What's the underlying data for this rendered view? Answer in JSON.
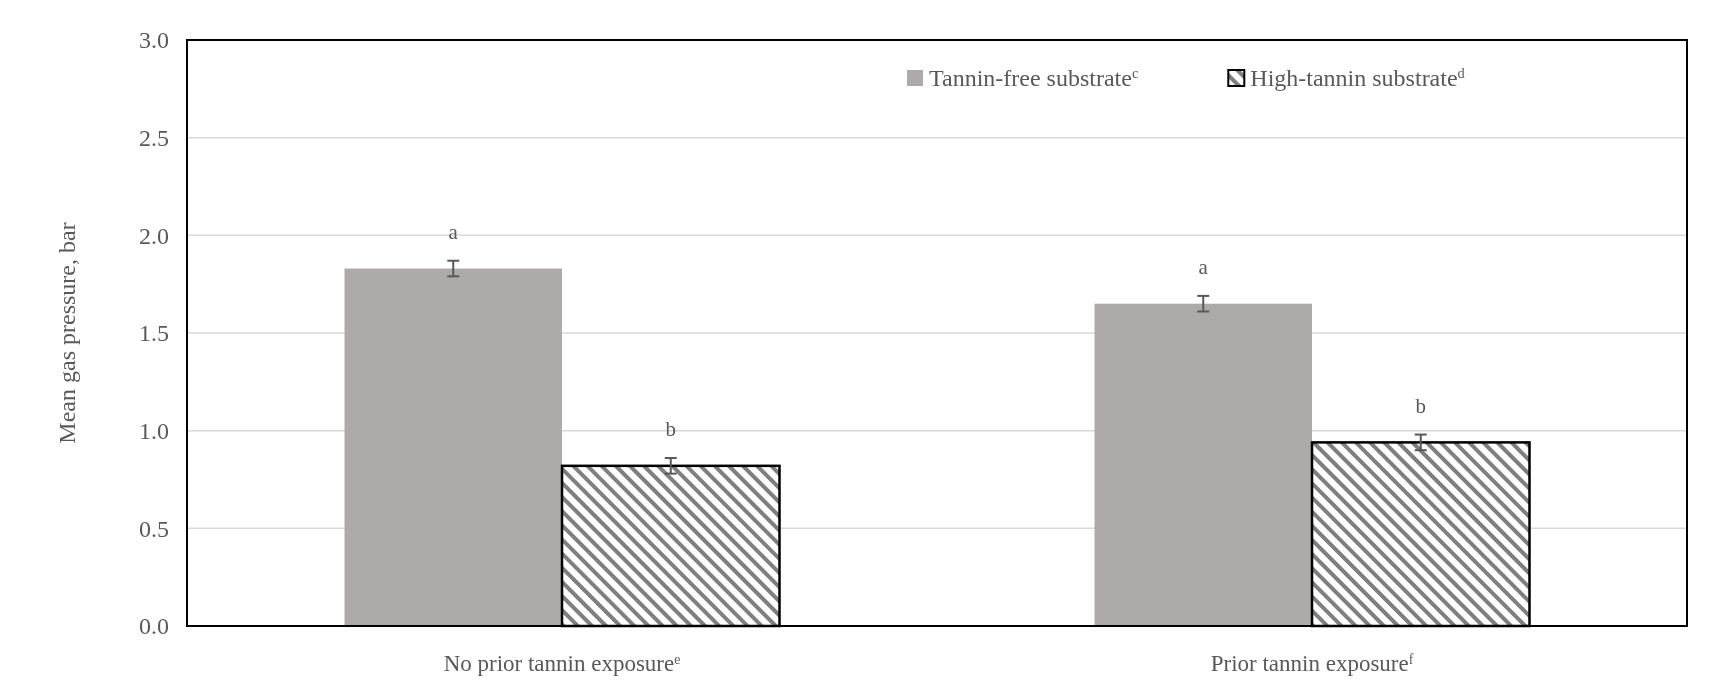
{
  "chart_data": {
    "type": "bar",
    "ylabel": "Mean gas pressure, bar",
    "categories": [
      "No prior tannin exposure$^{e}$",
      "Prior tannin exposure$^{f}$"
    ],
    "series": [
      {
        "name": "Tannin-free substrate$^{c}$",
        "color": "#aeaaaa",
        "values": [
          1.83,
          1.65
        ],
        "errors": [
          0.04,
          0.04
        ]
      },
      {
        "name": "High-tannin substrate$^{d}$",
        "color": "#000000",
        "values": [
          0.82,
          0.94
        ],
        "errors": [
          0.04,
          0.04
        ]
      }
    ],
    "ylim": [
      0,
      3
    ],
    "yticks": [
      {
        "value": 0,
        "label": "0.0"
      },
      {
        "value": 0.5,
        "label": "0.5"
      },
      {
        "value": 1,
        "label": "1.0"
      },
      {
        "value": 1.5,
        "label": "1.5"
      },
      {
        "value": 2,
        "label": "2.0"
      },
      {
        "value": 2.5,
        "label": "2.5"
      },
      {
        "value": 3,
        "label": "3.0"
      }
    ],
    "grid": "y",
    "legend": "top right",
    "annotations": [
      "a",
      "b",
      "a",
      "b"
    ]
  }
}
